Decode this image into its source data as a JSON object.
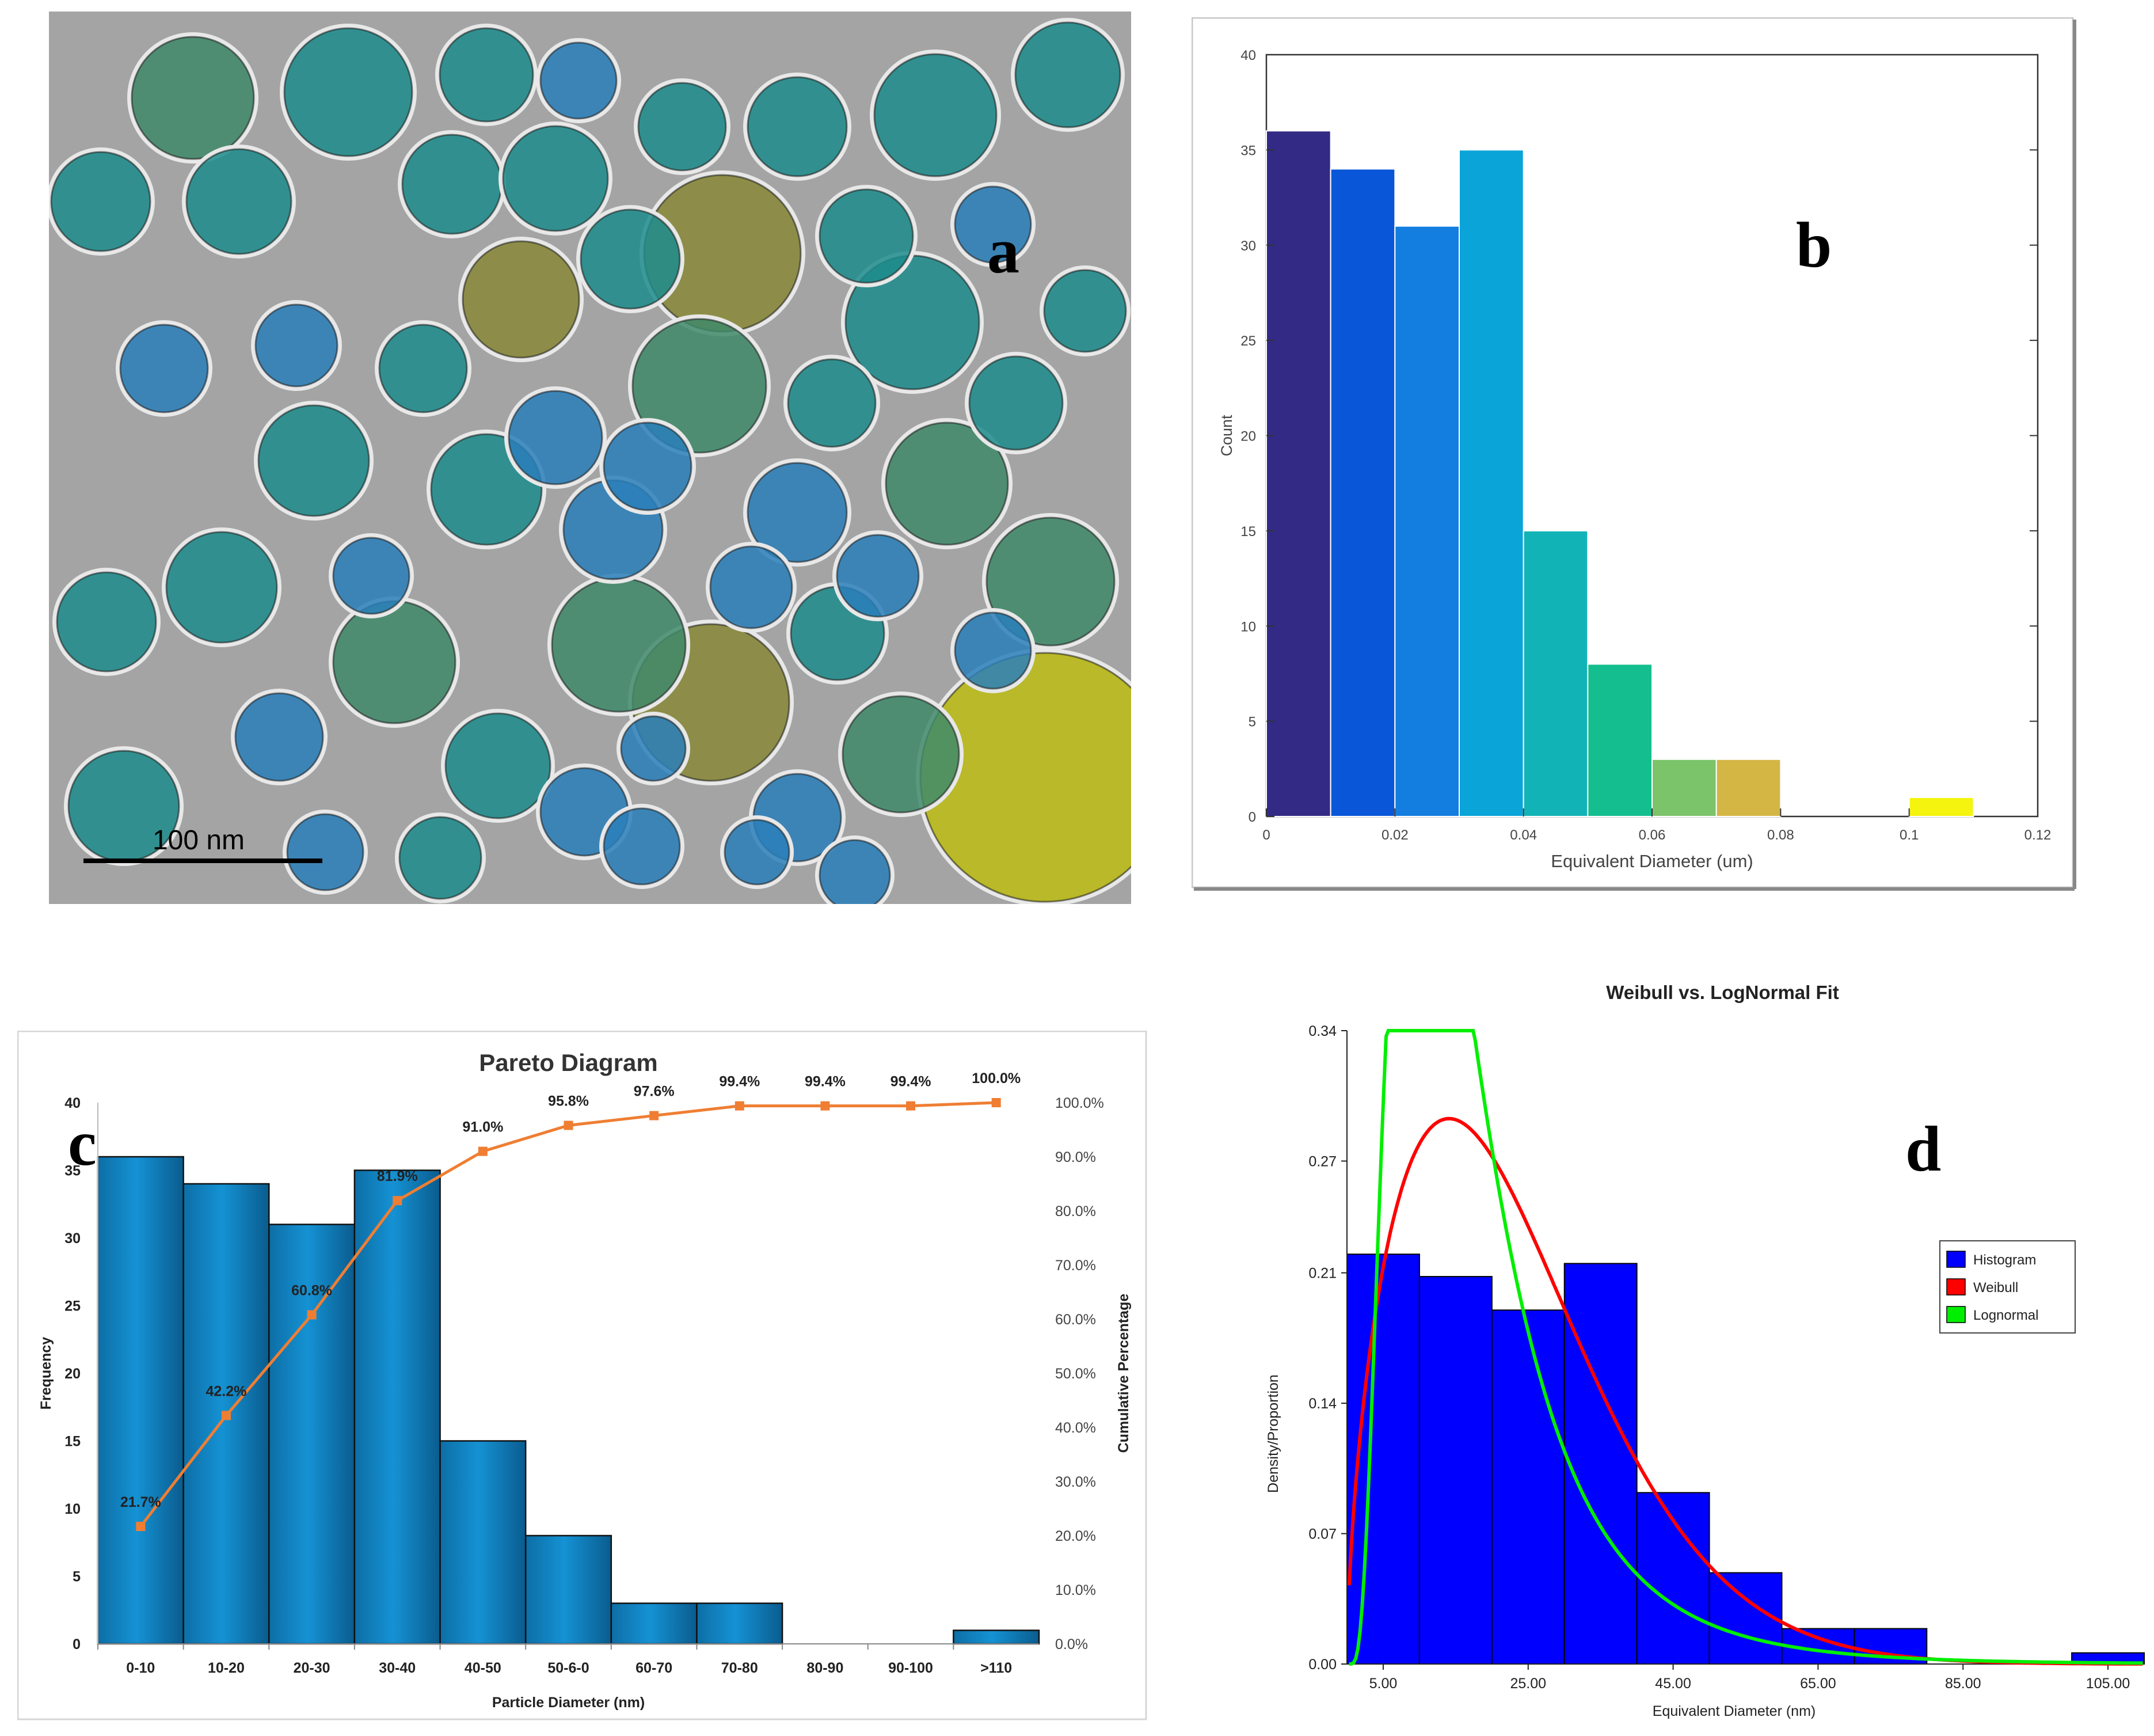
{
  "panels": {
    "a": {
      "letter": "a",
      "scale_bar_label": "100 nm",
      "colors": {
        "background": "#9a9a9a",
        "blue": "#2a7fba",
        "teal": "#1e8c8c",
        "green": "#3f8a6a",
        "olive": "#8a8a3a",
        "yellow": "#bdbd14"
      }
    },
    "b": {
      "letter": "b"
    },
    "c": {
      "letter": "c"
    },
    "d": {
      "letter": "d"
    }
  },
  "chart_data": [
    {
      "id": "b",
      "type": "bar",
      "title": "",
      "xlabel": "Equivalent Diameter (um)",
      "ylabel": "Count",
      "xlim": [
        0,
        0.12
      ],
      "ylim": [
        0,
        40
      ],
      "xticks": [
        "0",
        "0.02",
        "0.04",
        "0.06",
        "0.08",
        "0.1",
        "0.12"
      ],
      "yticks": [
        "0",
        "5",
        "10",
        "15",
        "20",
        "25",
        "30",
        "35",
        "40"
      ],
      "bins": [
        {
          "x0": 0.0,
          "x1": 0.01,
          "count": 36,
          "color": "#332a85"
        },
        {
          "x0": 0.01,
          "x1": 0.02,
          "count": 34,
          "color": "#0a56d8"
        },
        {
          "x0": 0.02,
          "x1": 0.03,
          "count": 31,
          "color": "#147ee0"
        },
        {
          "x0": 0.03,
          "x1": 0.04,
          "count": 35,
          "color": "#0aa4d8"
        },
        {
          "x0": 0.04,
          "x1": 0.05,
          "count": 15,
          "color": "#12b3b7"
        },
        {
          "x0": 0.05,
          "x1": 0.06,
          "count": 8,
          "color": "#14be8e"
        },
        {
          "x0": 0.06,
          "x1": 0.07,
          "count": 3,
          "color": "#7bc46a"
        },
        {
          "x0": 0.07,
          "x1": 0.08,
          "count": 3,
          "color": "#d4b645"
        },
        {
          "x0": 0.1,
          "x1": 0.11,
          "count": 1,
          "color": "#f4f40e"
        }
      ]
    },
    {
      "id": "c",
      "type": "bar",
      "title": "Pareto Diagram",
      "xlabel": "Particle Diameter (nm)",
      "ylabel": "Frequency",
      "y2label": "Cumulative Percentage",
      "ylim": [
        0,
        40
      ],
      "y2lim": [
        0,
        100
      ],
      "yticks": [
        "0",
        "5",
        "10",
        "15",
        "20",
        "25",
        "30",
        "35",
        "40"
      ],
      "y2ticks": [
        "0.0%",
        "10.0%",
        "20.0%",
        "30.0%",
        "40.0%",
        "50.0%",
        "60.0%",
        "70.0%",
        "80.0%",
        "90.0%",
        "100.0%"
      ],
      "categories": [
        "0-10",
        "10-20",
        "20-30",
        "30-40",
        "40-50",
        "50-6-0",
        "60-70",
        "70-80",
        "80-90",
        "90-100",
        ">110"
      ],
      "values": [
        36,
        34,
        31,
        35,
        15,
        8,
        3,
        3,
        0,
        0,
        1
      ],
      "cumulative": [
        21.7,
        42.2,
        60.8,
        81.9,
        91.0,
        95.8,
        97.6,
        99.4,
        99.4,
        99.4,
        100.0
      ],
      "cumulative_labels": [
        "21.7%",
        "42.2%",
        "60.8%",
        "81.9%",
        "91.0%",
        "95.8%",
        "97.6%",
        "99.4%",
        "99.4%",
        "99.4%",
        "100.0%"
      ],
      "bar_color": "#1592d4",
      "line_color": "#ef7e33"
    },
    {
      "id": "d",
      "type": "bar",
      "title": "Weibull vs. LogNormal Fit",
      "xlabel": "Equivalent Diameter (nm)",
      "ylabel": "Density/Proportion",
      "xlim": [
        0,
        110
      ],
      "ylim": [
        0,
        0.34
      ],
      "xticks": [
        "5.00",
        "25.00",
        "45.00",
        "65.00",
        "85.00",
        "105.00"
      ],
      "xtick_values": [
        5,
        25,
        45,
        65,
        85,
        105
      ],
      "yticks": [
        "0.00",
        "0.07",
        "0.14",
        "0.21",
        "0.27",
        "0.34"
      ],
      "ytick_values": [
        0,
        0.07,
        0.14,
        0.21,
        0.27,
        0.34
      ],
      "histogram": [
        {
          "x0": 0,
          "x1": 10,
          "value": 0.22
        },
        {
          "x0": 10,
          "x1": 20,
          "value": 0.208
        },
        {
          "x0": 20,
          "x1": 30,
          "value": 0.19
        },
        {
          "x0": 30,
          "x1": 40,
          "value": 0.215
        },
        {
          "x0": 40,
          "x1": 50,
          "value": 0.092
        },
        {
          "x0": 50,
          "x1": 60,
          "value": 0.049
        },
        {
          "x0": 60,
          "x1": 70,
          "value": 0.019
        },
        {
          "x0": 70,
          "x1": 80,
          "value": 0.019
        },
        {
          "x0": 100,
          "x1": 110,
          "value": 0.006
        }
      ],
      "weibull": {
        "shape": 1.6,
        "scale": 26.0,
        "scale_factor": 10
      },
      "lognormal": {
        "mu": 2.7,
        "sigma": 0.65,
        "scale_factor": 10
      },
      "legend": [
        {
          "label": "Histogram",
          "color": "#0000ff"
        },
        {
          "label": "Weibull",
          "color": "#ff0000"
        },
        {
          "label": "Lognormal",
          "color": "#00ee00"
        }
      ],
      "legend_position": "right"
    }
  ]
}
